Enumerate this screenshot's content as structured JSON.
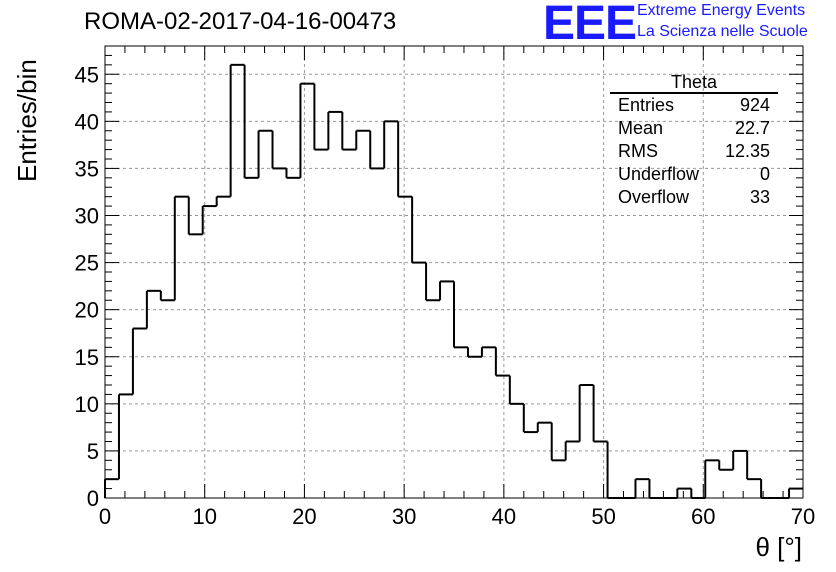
{
  "header": {
    "title": "ROMA-02-2017-04-16-00473",
    "logo_text": "EEE",
    "logo_line1": "Extreme Energy Events",
    "logo_line2": "La Scienza nelle Scuole"
  },
  "stats_box": {
    "title": "Theta",
    "rows": [
      {
        "label": "Entries",
        "value": "924"
      },
      {
        "label": "Mean",
        "value": "22.7"
      },
      {
        "label": "RMS",
        "value": "12.35"
      },
      {
        "label": "Underflow",
        "value": "0"
      },
      {
        "label": "Overflow",
        "value": "33"
      }
    ]
  },
  "chart_data": {
    "type": "bar",
    "subtype": "histogram",
    "title": "ROMA-02-2017-04-16-00473",
    "xlabel": "θ [°]",
    "ylabel": "Entries/bin",
    "xlim": [
      0,
      70
    ],
    "ylim": [
      0,
      48
    ],
    "bin_width": 1.4,
    "bin_edges_start": 0,
    "x_ticks": [
      0,
      10,
      20,
      30,
      40,
      50,
      60,
      70
    ],
    "y_ticks": [
      0,
      5,
      10,
      15,
      20,
      25,
      30,
      35,
      40,
      45
    ],
    "grid": true,
    "legend": "top-right",
    "values": [
      2,
      11,
      18,
      22,
      21,
      32,
      28,
      31,
      32,
      46,
      34,
      39,
      35,
      34,
      44,
      37,
      41,
      37,
      39,
      35,
      40,
      32,
      25,
      21,
      23,
      16,
      15,
      16,
      13,
      10,
      7,
      8,
      4,
      6,
      12,
      6,
      0,
      0,
      2,
      0,
      0,
      1,
      0,
      4,
      3,
      5,
      2,
      0,
      0,
      1
    ],
    "line_color": "#000000"
  }
}
